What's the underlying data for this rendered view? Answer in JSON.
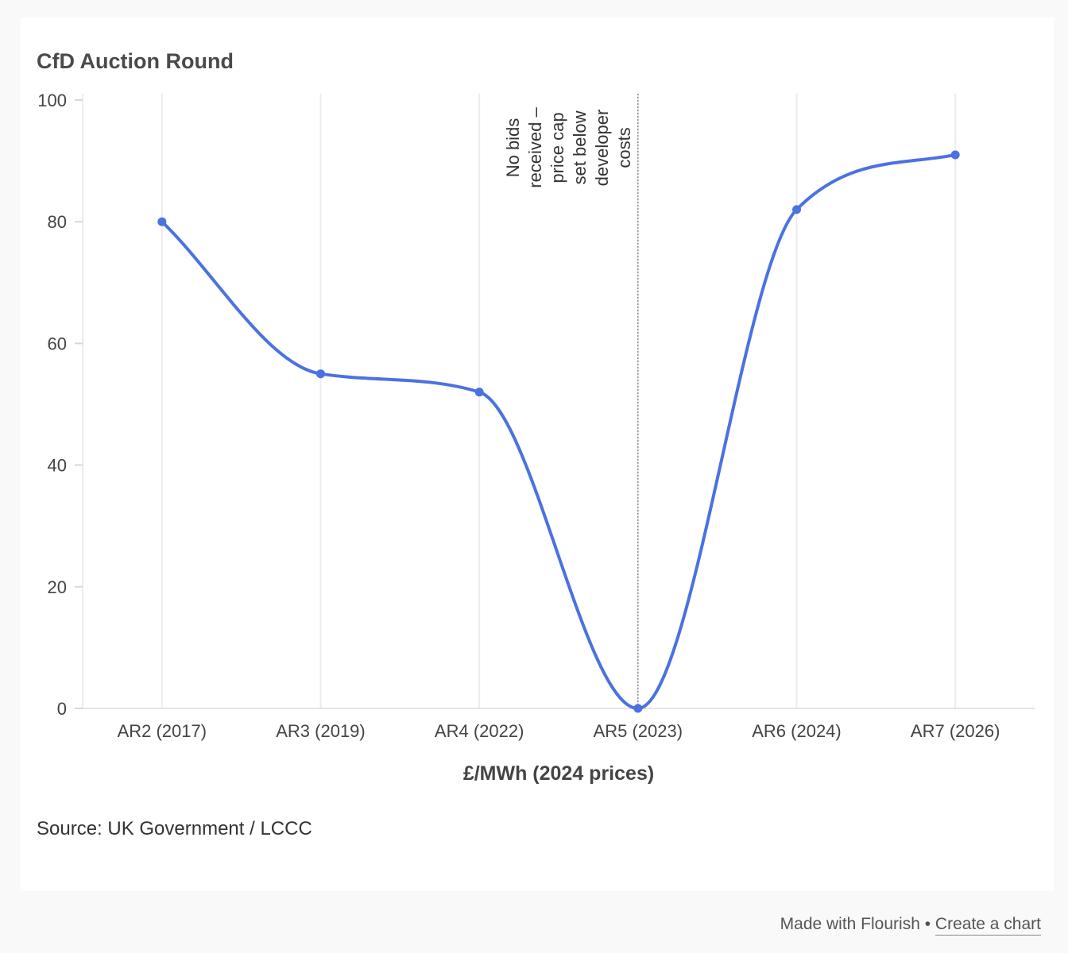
{
  "chart_data": {
    "type": "line",
    "title": "CfD Auction Round",
    "xlabel": "£/MWh (2024 prices)",
    "ylabel": "",
    "categories": [
      "AR2 (2017)",
      "AR3 (2019)",
      "AR4 (2022)",
      "AR5 (2023)",
      "AR6 (2024)",
      "AR7 (2026)"
    ],
    "series": [
      {
        "name": "£/MWh (2024 prices)",
        "values": [
          80,
          55,
          52,
          0,
          82,
          91
        ],
        "color": "#4a72e0"
      }
    ],
    "ylim": [
      0,
      100
    ],
    "yticks": [
      0,
      20,
      40,
      60,
      80,
      100
    ],
    "ytick_labels": [
      "0",
      "20",
      "40",
      "60",
      "80",
      "100"
    ],
    "grid": true,
    "annotation": {
      "category": "AR5 (2023)",
      "lines": [
        "No bids",
        "received –",
        "price cap",
        "set below",
        "developer",
        "costs"
      ]
    }
  },
  "source": "Source: UK Government / LCCC",
  "footer": {
    "made_with": "Made with Flourish",
    "separator": "•",
    "link": "Create a chart"
  }
}
